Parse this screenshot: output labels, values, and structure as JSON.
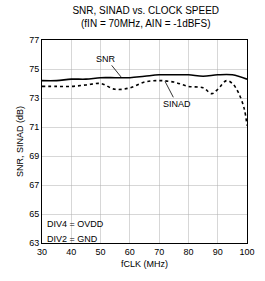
{
  "chart_data": {
    "type": "line",
    "title": "SNR, SINAD vs. CLOCK SPEED",
    "subtitle": "(fIN = 70MHz, AIN = -1dBFS)",
    "x_label": "fCLK (MHz)",
    "y_label": "SNR, SINAD (dB)",
    "xlim": [
      30,
      100
    ],
    "xticks": [
      30,
      40,
      50,
      60,
      70,
      80,
      90,
      100
    ],
    "ylim": [
      63,
      77
    ],
    "yticks": [
      63,
      65,
      67,
      69,
      71,
      73,
      75,
      77
    ],
    "grid": true,
    "series": [
      {
        "name": "SNR",
        "color": "#000000",
        "line_style": "solid",
        "x": [
          30,
          35,
          40,
          45,
          50,
          55,
          60,
          65,
          70,
          75,
          80,
          85,
          90,
          95,
          100
        ],
        "values": [
          74.2,
          74.2,
          74.3,
          74.3,
          74.4,
          74.4,
          74.4,
          74.5,
          74.6,
          74.6,
          74.6,
          74.5,
          74.6,
          74.6,
          74.3
        ]
      },
      {
        "name": "SINAD",
        "color": "#000000",
        "line_style": "dot",
        "x": [
          30,
          35,
          40,
          45,
          50,
          55,
          60,
          65,
          70,
          75,
          80,
          85,
          88,
          90,
          93,
          95,
          97,
          99,
          100
        ],
        "values": [
          73.8,
          73.8,
          73.8,
          73.9,
          74.0,
          73.6,
          73.7,
          74.1,
          74.2,
          74.1,
          73.8,
          73.7,
          73.3,
          73.6,
          74.2,
          74.0,
          73.4,
          72.3,
          71.1
        ]
      }
    ],
    "annotations": [
      "DIV4 = OVDD",
      "DIV2 = GND"
    ]
  }
}
